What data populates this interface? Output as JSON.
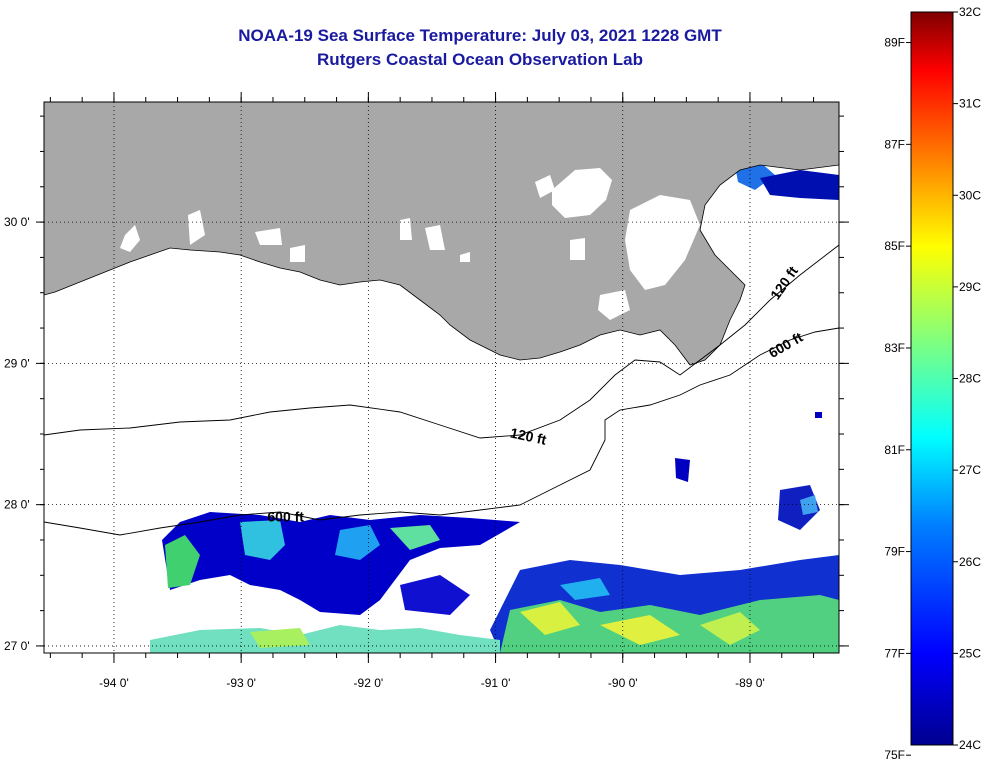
{
  "header": {
    "title": "NOAA-19 Sea Surface Temperature:  July 03, 2021 1228 GMT",
    "subtitle": "Rutgers Coastal Ocean Observation Lab"
  },
  "map": {
    "lon_range": [
      -94.55,
      -88.3
    ],
    "lat_range": [
      26.95,
      30.85
    ],
    "lon_ticks": [
      {
        "value": -94,
        "label": "-94 0'"
      },
      {
        "value": -93,
        "label": "-93 0'"
      },
      {
        "value": -92,
        "label": "-92 0'"
      },
      {
        "value": -91,
        "label": "-91 0'"
      },
      {
        "value": -90,
        "label": "-90 0'"
      },
      {
        "value": -89,
        "label": "-89 0'"
      }
    ],
    "lat_ticks": [
      {
        "value": 30,
        "label": "30 0'"
      },
      {
        "value": 29,
        "label": "29 0'"
      },
      {
        "value": 28,
        "label": "28 0'"
      },
      {
        "value": 27,
        "label": "27 0'"
      }
    ],
    "grid": "dotted",
    "land_color": "#a8a8a8",
    "no_data_color": "#ffffff",
    "contour_labels": [
      {
        "text": "120 ft",
        "lon": -90.75,
        "lat": 28.45
      },
      {
        "text": "600 ft",
        "lon": -92.65,
        "lat": 27.88
      },
      {
        "text": "120 ft",
        "lon": -88.7,
        "lat": 29.55
      },
      {
        "text": "600 ft",
        "lon": -88.7,
        "lat": 29.1
      }
    ]
  },
  "colorbar": {
    "celsius_labels": [
      "32C",
      "31C",
      "30C",
      "29C",
      "28C",
      "27C",
      "26C",
      "25C",
      "24C"
    ],
    "fahrenheit_labels": [
      "89F",
      "87F",
      "85F",
      "83F",
      "81F",
      "79F",
      "77F",
      "75F"
    ],
    "colors": [
      "#7f0000",
      "#ff0000",
      "#ff7f00",
      "#ffff00",
      "#7fff7f",
      "#00ffff",
      "#007fff",
      "#0000ff",
      "#00008f"
    ]
  }
}
